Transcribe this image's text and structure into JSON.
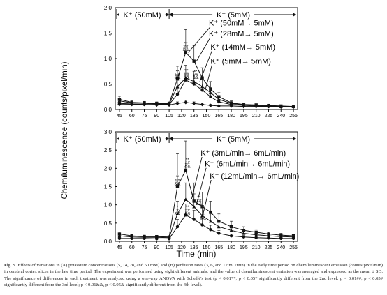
{
  "figure": {
    "ylabel": "Chemiluminescence (counts/pixel/min)",
    "xlabel": "Time (min)",
    "caption_label": "Fig. 5.",
    "caption_text": "Effects of variations in (A) potassium concentrations (5, 14, 28, and 50 mM) and (B) perfusion rates (3, 6, and 12 mL/min) in the early time period on chemiluminescent emission (counts/pixel/min) in cerebral cortex slices in the late time period. The experiment was performed using eight different animals, and the value of chemiluminescent emission was averaged and expressed as the mean ± SD. The significance of differences in each treatment was analyzed using a one-way ANOVA with Scheffé's test (p < 0.01**, p < 0.05* significantly different from the 2nd level; p < 0.01##, p < 0.05# significantly different from the 3rd level; p < 0.01&&, p < 0.05& significantly different from the 4th level)."
  },
  "chart_data": [
    {
      "type": "line",
      "panel": "A",
      "x": [
        45,
        55,
        65,
        75,
        85,
        95,
        105,
        115,
        125,
        135,
        145,
        155,
        165,
        175,
        185,
        195,
        205,
        215,
        225,
        235,
        245,
        255
      ],
      "ylim": [
        0,
        2.0
      ],
      "xlim": [
        40,
        260
      ],
      "yticks": [
        "0.0",
        "0.5",
        "1.0",
        "1.5",
        "2.0"
      ],
      "xticks": [
        "45",
        "60",
        "75",
        "90",
        "105",
        "120",
        "135",
        "150",
        "165",
        "180",
        "195",
        "210",
        "225",
        "240",
        "255"
      ],
      "phase_left": "K⁺ (50mM)",
      "phase_right": "K⁺ (5mM)",
      "phase_divider_x": 105,
      "series": [
        {
          "name": "K⁺ (50mM→ 5mM)",
          "marker": "square",
          "x": [
            45,
            60,
            75,
            90,
            105,
            115,
            125,
            135,
            145,
            155,
            165,
            180,
            195,
            210,
            225,
            240,
            255
          ],
          "values": [
            0.2,
            0.14,
            0.13,
            0.12,
            0.12,
            0.6,
            1.12,
            0.95,
            0.62,
            0.4,
            0.25,
            0.13,
            0.1,
            0.09,
            0.08,
            0.07,
            0.06
          ],
          "err": [
            0.06,
            0.03,
            0.03,
            0.03,
            0.03,
            0.25,
            0.45,
            0.3,
            0.2,
            0.15,
            0.08,
            0.04,
            0.03,
            0.02,
            0.02,
            0.02,
            0.02
          ]
        },
        {
          "name": "K⁺ (28mM→ 5mM)",
          "marker": "triangle",
          "x": [
            45,
            60,
            75,
            90,
            105,
            115,
            125,
            135,
            145,
            155,
            165,
            180,
            195,
            210,
            225,
            240,
            255
          ],
          "values": [
            0.17,
            0.13,
            0.12,
            0.11,
            0.11,
            0.45,
            0.62,
            0.55,
            0.45,
            0.33,
            0.2,
            0.12,
            0.09,
            0.08,
            0.07,
            0.06,
            0.06
          ],
          "err": [
            0.05,
            0.03,
            0.03,
            0.03,
            0.03,
            0.18,
            0.25,
            0.2,
            0.15,
            0.1,
            0.06,
            0.03,
            0.02,
            0.02,
            0.02,
            0.02,
            0.02
          ]
        },
        {
          "name": "K⁺ (14mM→ 5mM)",
          "marker": "circle",
          "x": [
            45,
            60,
            75,
            90,
            105,
            115,
            125,
            135,
            145,
            155,
            165,
            180,
            195,
            210,
            225,
            240,
            255
          ],
          "values": [
            0.12,
            0.11,
            0.1,
            0.1,
            0.1,
            0.3,
            0.58,
            0.5,
            0.38,
            0.25,
            0.15,
            0.1,
            0.08,
            0.07,
            0.06,
            0.06,
            0.05
          ],
          "err": [
            0.04,
            0.03,
            0.03,
            0.03,
            0.03,
            0.12,
            0.2,
            0.18,
            0.12,
            0.08,
            0.05,
            0.03,
            0.02,
            0.02,
            0.02,
            0.02,
            0.02
          ]
        },
        {
          "name": "K⁺ (5mM→ 5mM)",
          "marker": "diamond",
          "x": [
            45,
            60,
            75,
            90,
            105,
            115,
            125,
            135,
            145,
            155,
            165,
            180,
            195,
            210,
            225,
            240,
            255
          ],
          "values": [
            0.1,
            0.1,
            0.1,
            0.09,
            0.09,
            0.12,
            0.14,
            0.12,
            0.1,
            0.08,
            0.07,
            0.07,
            0.06,
            0.06,
            0.06,
            0.05,
            0.05
          ],
          "err": [
            0.03,
            0.02,
            0.02,
            0.02,
            0.02,
            0.03,
            0.04,
            0.03,
            0.03,
            0.02,
            0.02,
            0.02,
            0.02,
            0.02,
            0.02,
            0.02,
            0.02
          ]
        }
      ],
      "annotations": [
        {
          "text": "**",
          "x": 115,
          "y": 0.72
        },
        {
          "text": "##",
          "x": 115,
          "y": 0.66
        },
        {
          "text": "&&",
          "x": 115,
          "y": 0.6
        },
        {
          "text": "**",
          "x": 125,
          "y": 1.27
        },
        {
          "text": "##",
          "x": 125,
          "y": 1.21
        },
        {
          "text": "&&",
          "x": 125,
          "y": 1.15
        },
        {
          "text": "**",
          "x": 126,
          "y": 0.73
        },
        {
          "text": "##",
          "x": 126,
          "y": 0.67
        },
        {
          "text": "&&",
          "x": 126,
          "y": 0.61
        },
        {
          "text": "**",
          "x": 137,
          "y": 0.72
        },
        {
          "text": "##",
          "x": 137,
          "y": 0.66
        },
        {
          "text": "&&",
          "x": 137,
          "y": 0.6
        }
      ],
      "legend_labels": [
        {
          "text": "K⁺ (50mM→ 5mM)",
          "tx": 153,
          "ty": 1.65,
          "ax": 128,
          "ay": 1.12
        },
        {
          "text": "K⁺ (28mM→ 5mM)",
          "tx": 153,
          "ty": 1.44,
          "ax": 138,
          "ay": 0.95
        },
        {
          "text": "K⁺ (14mM→ 5mM)",
          "tx": 155,
          "ty": 1.18,
          "ax": 142,
          "ay": 0.55
        },
        {
          "text": "K⁺ (5mM→ 5mM)",
          "tx": 155,
          "ty": 0.9,
          "ax": 148,
          "ay": 0.35
        }
      ]
    },
    {
      "type": "line",
      "panel": "B",
      "x": [
        45,
        55,
        65,
        75,
        85,
        95,
        105,
        115,
        125,
        135,
        145,
        155,
        165,
        175,
        185,
        195,
        205,
        215,
        225,
        235,
        245,
        255
      ],
      "ylim": [
        0,
        3.0
      ],
      "xlim": [
        40,
        260
      ],
      "yticks": [
        "0.0",
        "0.5",
        "1.0",
        "1.5",
        "2.0",
        "2.5",
        "3.0"
      ],
      "xticks": [
        "45",
        "60",
        "75",
        "90",
        "105",
        "120",
        "135",
        "150",
        "165",
        "180",
        "195",
        "210",
        "225",
        "240",
        "255"
      ],
      "phase_left": "K⁺ (50mM)",
      "phase_right": "K⁺ (5mM)",
      "phase_divider_x": 105,
      "series": [
        {
          "name": "K⁺ (3mL/min→ 6mL/min)",
          "marker": "square",
          "x": [
            45,
            60,
            75,
            90,
            105,
            115,
            125,
            135,
            145,
            155,
            165,
            180,
            195,
            210,
            225,
            240,
            255
          ],
          "values": [
            0.2,
            0.15,
            0.13,
            0.13,
            0.12,
            1.5,
            1.95,
            1.1,
            0.95,
            0.8,
            0.55,
            0.4,
            0.3,
            0.25,
            0.2,
            0.17,
            0.15
          ],
          "err": [
            0.06,
            0.04,
            0.04,
            0.03,
            0.03,
            0.9,
            0.8,
            0.5,
            0.4,
            0.3,
            0.2,
            0.15,
            0.1,
            0.08,
            0.06,
            0.05,
            0.05
          ]
        },
        {
          "name": "K⁺ (6mL/min→ 6mL/min)",
          "marker": "triangle",
          "x": [
            45,
            60,
            75,
            90,
            105,
            115,
            125,
            135,
            145,
            155,
            165,
            180,
            195,
            210,
            225,
            240,
            255
          ],
          "values": [
            0.15,
            0.12,
            0.11,
            0.11,
            0.1,
            0.75,
            1.15,
            0.95,
            0.7,
            0.55,
            0.4,
            0.3,
            0.22,
            0.18,
            0.15,
            0.13,
            0.12
          ],
          "err": [
            0.05,
            0.03,
            0.03,
            0.03,
            0.03,
            0.35,
            0.45,
            0.35,
            0.25,
            0.2,
            0.15,
            0.1,
            0.08,
            0.06,
            0.05,
            0.04,
            0.04
          ]
        },
        {
          "name": "K⁺ (12mL/min→ 6mL/min)",
          "marker": "circle",
          "x": [
            45,
            60,
            75,
            90,
            105,
            115,
            125,
            135,
            145,
            155,
            165,
            180,
            195,
            210,
            225,
            240,
            255
          ],
          "values": [
            0.08,
            0.08,
            0.08,
            0.07,
            0.07,
            0.4,
            0.72,
            0.6,
            0.45,
            0.32,
            0.22,
            0.15,
            0.12,
            0.1,
            0.09,
            0.08,
            0.08
          ],
          "err": [
            0.03,
            0.02,
            0.02,
            0.02,
            0.02,
            0.2,
            0.3,
            0.25,
            0.18,
            0.12,
            0.08,
            0.05,
            0.04,
            0.03,
            0.03,
            0.03,
            0.03
          ]
        }
      ],
      "annotations": [
        {
          "text": "**",
          "x": 115,
          "y": 1.72
        },
        {
          "text": "##",
          "x": 115,
          "y": 1.63
        },
        {
          "text": "&&",
          "x": 115,
          "y": 1.54
        },
        {
          "text": "**",
          "x": 127,
          "y": 2.2
        },
        {
          "text": "##",
          "x": 127,
          "y": 2.11
        },
        {
          "text": "&&",
          "x": 127,
          "y": 2.02
        },
        {
          "text": "**",
          "x": 141,
          "y": 1.17
        },
        {
          "text": "##",
          "x": 141,
          "y": 1.08
        },
        {
          "text": "&&",
          "x": 141,
          "y": 0.99
        },
        {
          "text": "*",
          "x": 115,
          "y": 0.9
        },
        {
          "text": "#",
          "x": 115,
          "y": 0.81
        },
        {
          "text": "&&",
          "x": 115,
          "y": 0.72
        },
        {
          "text": "**",
          "x": 127,
          "y": 0.9
        },
        {
          "text": "##",
          "x": 127,
          "y": 0.81
        },
        {
          "text": "&&",
          "x": 127,
          "y": 0.72
        },
        {
          "text": "*",
          "x": 146,
          "y": 0.78
        },
        {
          "text": "#",
          "x": 146,
          "y": 0.69
        },
        {
          "text": "&&",
          "x": 146,
          "y": 0.6
        }
      ],
      "legend_labels": [
        {
          "text": "K⁺ (3mL/min→ 6mL/min)",
          "tx": 143,
          "ty": 2.35,
          "ax": 132,
          "ay": 1.15
        },
        {
          "text": "K⁺ (6mL/min→ 6mL/min)",
          "tx": 148,
          "ty": 2.05,
          "ax": 138,
          "ay": 1.0
        },
        {
          "text": "K⁺ (12mL/min→ 6mL/min)",
          "tx": 154,
          "ty": 1.72,
          "ax": 146,
          "ay": 0.75
        }
      ]
    }
  ]
}
